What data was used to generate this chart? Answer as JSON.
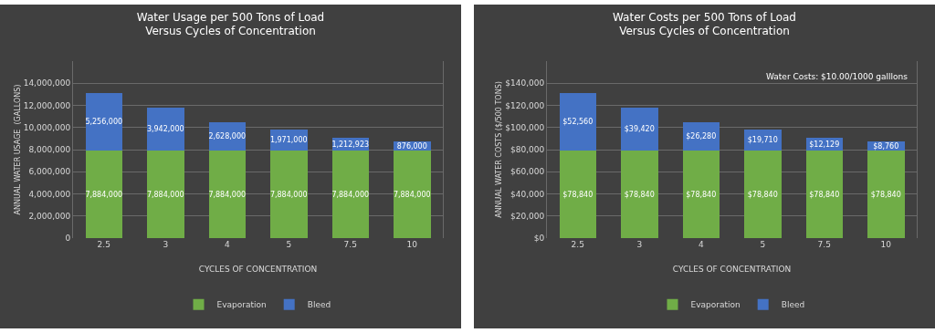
{
  "chart_data": [
    {
      "type": "bar",
      "title": "Water Usage per 500 Tons of Load\nVersus Cycles of Concentration",
      "xlabel": "CYCLES OF CONCENTRATION",
      "ylabel": "ANNUAL WATER USAGE  (GALLONS)",
      "categories": [
        "2.5",
        "3",
        "4",
        "5",
        "7.5",
        "10"
      ],
      "stacked": true,
      "series": [
        {
          "name": "Evaporation",
          "color": "#70ad47",
          "values": [
            7884000,
            7884000,
            7884000,
            7884000,
            7884000,
            7884000
          ],
          "value_labels": [
            "7,884,000",
            "7,884,000",
            "7,884,000",
            "7,884,000",
            "7,884,000",
            "7,884,000"
          ]
        },
        {
          "name": "Bleed",
          "color": "#4472c4",
          "values": [
            5256000,
            3942000,
            2628000,
            1971000,
            1212923,
            876000
          ],
          "value_labels": [
            "5,256,000",
            "3,942,000",
            "2,628,000",
            "1,971,000",
            "1,212,923",
            "876,000"
          ]
        }
      ],
      "ylim": [
        0,
        16000000
      ],
      "yticks": [
        {
          "value": 0,
          "label": "0"
        },
        {
          "value": 2000000,
          "label": "2,000,000"
        },
        {
          "value": 4000000,
          "label": "4,000,000"
        },
        {
          "value": 6000000,
          "label": "6,000,000"
        },
        {
          "value": 8000000,
          "label": "8,000,000"
        },
        {
          "value": 10000000,
          "label": "10,000,000"
        },
        {
          "value": 12000000,
          "label": "12,000,000"
        },
        {
          "value": 14000000,
          "label": "14,000,000"
        }
      ],
      "grid": "y",
      "legend": "bottom"
    },
    {
      "type": "bar",
      "title": "Water Costs per 500 Tons of Load\nVersus Cycles of Concentration",
      "xlabel": "CYCLES OF CONCENTRATION",
      "ylabel": "ANNUAL WATER COSTS ($/500 TONS)",
      "categories": [
        "2.5",
        "3",
        "4",
        "5",
        "7.5",
        "10"
      ],
      "stacked": true,
      "series": [
        {
          "name": "Evaporation",
          "color": "#70ad47",
          "values": [
            78840,
            78840,
            78840,
            78840,
            78840,
            78840
          ],
          "value_labels": [
            "$78,840",
            "$78,840",
            "$78,840",
            "$78,840",
            "$78,840",
            "$78,840"
          ]
        },
        {
          "name": "Bleed",
          "color": "#4472c4",
          "values": [
            52560,
            39420,
            26280,
            19710,
            12129,
            8760
          ],
          "value_labels": [
            "$52,560",
            "$39,420",
            "$26,280",
            "$19,710",
            "$12,129",
            "$8,760"
          ]
        }
      ],
      "ylim": [
        0,
        160000
      ],
      "yticks": [
        {
          "value": 0,
          "label": "$0"
        },
        {
          "value": 20000,
          "label": "$20,000"
        },
        {
          "value": 40000,
          "label": "$40,000"
        },
        {
          "value": 60000,
          "label": "$60,000"
        },
        {
          "value": 80000,
          "label": "$80,000"
        },
        {
          "value": 100000,
          "label": "$100,000"
        },
        {
          "value": 120000,
          "label": "$120,000"
        },
        {
          "value": 140000,
          "label": "$140,000"
        }
      ],
      "annotations": [
        "Water Costs: $10.00/1000 galllons"
      ],
      "grid": "y",
      "legend": "bottom"
    }
  ]
}
